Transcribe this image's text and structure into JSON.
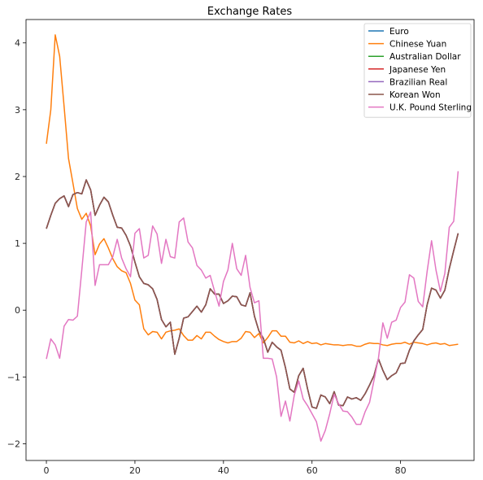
{
  "chart_data": {
    "type": "line",
    "title": "Exchange Rates",
    "xlabel": "",
    "ylabel": "",
    "xlim": [
      -4.6,
      96.6
    ],
    "ylim": [
      -2.25,
      4.35
    ],
    "xticks": [
      0,
      20,
      40,
      60,
      80
    ],
    "yticks": [
      -2,
      -1,
      0,
      1,
      2,
      3,
      4
    ],
    "grid": false,
    "legend_position": "top-right",
    "series": [
      {
        "name": "Euro",
        "color": "#1f77b4",
        "values": [
          1.22,
          1.42,
          1.6,
          1.67,
          1.71,
          1.55,
          1.73,
          1.76,
          1.74,
          1.95,
          1.8,
          1.42,
          1.57,
          1.69,
          1.62,
          1.42,
          1.24,
          1.23,
          1.12,
          0.96,
          0.72,
          0.5,
          0.4,
          0.38,
          0.32,
          0.16,
          -0.14,
          -0.25,
          -0.18,
          -0.66,
          -0.42,
          -0.12,
          -0.1,
          -0.02,
          0.06,
          -0.03,
          0.08,
          0.32,
          0.24,
          0.24,
          0.1,
          0.14,
          0.21,
          0.2,
          0.08,
          0.06,
          0.26,
          -0.09,
          -0.31,
          -0.42,
          -0.63,
          -0.48,
          -0.55,
          -0.6,
          -0.86,
          -1.18,
          -1.23,
          -0.98,
          -0.87,
          -1.18,
          -1.45,
          -1.47,
          -1.27,
          -1.3,
          -1.4,
          -1.22,
          -1.42,
          -1.43,
          -1.3,
          -1.33,
          -1.31,
          -1.35,
          -1.25,
          -1.12,
          -0.98,
          -0.73,
          -0.9,
          -1.04,
          -0.98,
          -0.94,
          -0.8,
          -0.79,
          -0.6,
          -0.46,
          -0.37,
          -0.29,
          0.08,
          0.33,
          0.3,
          0.18,
          0.3,
          0.62,
          0.89,
          1.15
        ]
      },
      {
        "name": "Chinese Yuan",
        "color": "#ff7f0e",
        "values": [
          2.49,
          3.0,
          4.12,
          3.8,
          3.05,
          2.27,
          1.9,
          1.52,
          1.36,
          1.45,
          1.26,
          0.83,
          0.99,
          1.07,
          0.93,
          0.77,
          0.65,
          0.59,
          0.56,
          0.4,
          0.15,
          0.08,
          -0.28,
          -0.37,
          -0.32,
          -0.33,
          -0.43,
          -0.33,
          -0.31,
          -0.3,
          -0.28,
          -0.38,
          -0.45,
          -0.45,
          -0.38,
          -0.43,
          -0.33,
          -0.33,
          -0.39,
          -0.44,
          -0.47,
          -0.49,
          -0.47,
          -0.47,
          -0.42,
          -0.32,
          -0.33,
          -0.41,
          -0.35,
          -0.49,
          -0.41,
          -0.31,
          -0.31,
          -0.39,
          -0.39,
          -0.48,
          -0.49,
          -0.46,
          -0.5,
          -0.47,
          -0.5,
          -0.49,
          -0.52,
          -0.5,
          -0.51,
          -0.52,
          -0.52,
          -0.53,
          -0.52,
          -0.52,
          -0.54,
          -0.54,
          -0.51,
          -0.49,
          -0.5,
          -0.5,
          -0.52,
          -0.53,
          -0.51,
          -0.5,
          -0.5,
          -0.48,
          -0.51,
          -0.48,
          -0.49,
          -0.5,
          -0.52,
          -0.5,
          -0.49,
          -0.51,
          -0.5,
          -0.53,
          -0.52,
          -0.51
        ]
      },
      {
        "name": "Australian Dollar",
        "color": "#2ca02c",
        "values": [
          1.22,
          1.42,
          1.6,
          1.67,
          1.71,
          1.55,
          1.73,
          1.76,
          1.74,
          1.95,
          1.8,
          1.42,
          1.57,
          1.69,
          1.62,
          1.42,
          1.24,
          1.23,
          1.12,
          0.96,
          0.72,
          0.5,
          0.4,
          0.38,
          0.32,
          0.16,
          -0.14,
          -0.25,
          -0.18,
          -0.66,
          -0.42,
          -0.12,
          -0.1,
          -0.02,
          0.06,
          -0.03,
          0.08,
          0.32,
          0.24,
          0.24,
          0.1,
          0.14,
          0.21,
          0.2,
          0.08,
          0.06,
          0.26,
          -0.09,
          -0.31,
          -0.42,
          -0.63,
          -0.48,
          -0.55,
          -0.6,
          -0.86,
          -1.18,
          -1.23,
          -0.98,
          -0.87,
          -1.18,
          -1.45,
          -1.47,
          -1.27,
          -1.3,
          -1.4,
          -1.22,
          -1.42,
          -1.43,
          -1.3,
          -1.33,
          -1.31,
          -1.35,
          -1.25,
          -1.12,
          -0.98,
          -0.73,
          -0.9,
          -1.04,
          -0.98,
          -0.94,
          -0.8,
          -0.79,
          -0.6,
          -0.46,
          -0.37,
          -0.29,
          0.08,
          0.33,
          0.3,
          0.18,
          0.3,
          0.62,
          0.89,
          1.15
        ]
      },
      {
        "name": "Japanese Yen",
        "color": "#d62728",
        "values": [
          1.22,
          1.42,
          1.6,
          1.67,
          1.71,
          1.55,
          1.73,
          1.76,
          1.74,
          1.95,
          1.8,
          1.42,
          1.57,
          1.69,
          1.62,
          1.42,
          1.24,
          1.23,
          1.12,
          0.96,
          0.72,
          0.5,
          0.4,
          0.38,
          0.32,
          0.16,
          -0.14,
          -0.25,
          -0.18,
          -0.66,
          -0.42,
          -0.12,
          -0.1,
          -0.02,
          0.06,
          -0.03,
          0.08,
          0.32,
          0.24,
          0.24,
          0.1,
          0.14,
          0.21,
          0.2,
          0.08,
          0.06,
          0.26,
          -0.09,
          -0.31,
          -0.42,
          -0.63,
          -0.48,
          -0.55,
          -0.6,
          -0.86,
          -1.18,
          -1.23,
          -0.98,
          -0.87,
          -1.18,
          -1.45,
          -1.47,
          -1.27,
          -1.3,
          -1.4,
          -1.22,
          -1.42,
          -1.43,
          -1.3,
          -1.33,
          -1.31,
          -1.35,
          -1.25,
          -1.12,
          -0.98,
          -0.73,
          -0.9,
          -1.04,
          -0.98,
          -0.94,
          -0.8,
          -0.79,
          -0.6,
          -0.46,
          -0.37,
          -0.29,
          0.08,
          0.33,
          0.3,
          0.18,
          0.3,
          0.62,
          0.89,
          1.15
        ]
      },
      {
        "name": "Brazilian Real",
        "color": "#9467bd",
        "values": [
          1.22,
          1.42,
          1.6,
          1.67,
          1.71,
          1.55,
          1.73,
          1.76,
          1.74,
          1.95,
          1.8,
          1.42,
          1.57,
          1.69,
          1.62,
          1.42,
          1.24,
          1.23,
          1.12,
          0.96,
          0.72,
          0.5,
          0.4,
          0.38,
          0.32,
          0.16,
          -0.14,
          -0.25,
          -0.18,
          -0.66,
          -0.42,
          -0.12,
          -0.1,
          -0.02,
          0.06,
          -0.03,
          0.08,
          0.32,
          0.24,
          0.24,
          0.1,
          0.14,
          0.21,
          0.2,
          0.08,
          0.06,
          0.26,
          -0.09,
          -0.31,
          -0.42,
          -0.63,
          -0.48,
          -0.55,
          -0.6,
          -0.86,
          -1.18,
          -1.23,
          -0.98,
          -0.87,
          -1.18,
          -1.45,
          -1.47,
          -1.27,
          -1.3,
          -1.4,
          -1.22,
          -1.42,
          -1.43,
          -1.3,
          -1.33,
          -1.31,
          -1.35,
          -1.25,
          -1.12,
          -0.98,
          -0.73,
          -0.9,
          -1.04,
          -0.98,
          -0.94,
          -0.8,
          -0.79,
          -0.6,
          -0.46,
          -0.37,
          -0.29,
          0.08,
          0.33,
          0.3,
          0.18,
          0.3,
          0.62,
          0.89,
          1.15
        ]
      },
      {
        "name": "Korean Won",
        "color": "#8c564b",
        "values": [
          1.22,
          1.42,
          1.6,
          1.67,
          1.71,
          1.55,
          1.73,
          1.76,
          1.74,
          1.95,
          1.8,
          1.42,
          1.57,
          1.69,
          1.62,
          1.42,
          1.24,
          1.23,
          1.12,
          0.96,
          0.72,
          0.5,
          0.4,
          0.38,
          0.32,
          0.16,
          -0.14,
          -0.25,
          -0.18,
          -0.66,
          -0.42,
          -0.12,
          -0.1,
          -0.02,
          0.06,
          -0.03,
          0.08,
          0.32,
          0.24,
          0.24,
          0.1,
          0.14,
          0.21,
          0.2,
          0.08,
          0.06,
          0.26,
          -0.09,
          -0.31,
          -0.42,
          -0.63,
          -0.48,
          -0.55,
          -0.6,
          -0.86,
          -1.18,
          -1.23,
          -0.98,
          -0.87,
          -1.18,
          -1.45,
          -1.47,
          -1.27,
          -1.3,
          -1.4,
          -1.22,
          -1.42,
          -1.43,
          -1.3,
          -1.33,
          -1.31,
          -1.35,
          -1.25,
          -1.12,
          -0.98,
          -0.73,
          -0.9,
          -1.04,
          -0.98,
          -0.94,
          -0.8,
          -0.79,
          -0.6,
          -0.46,
          -0.37,
          -0.29,
          0.08,
          0.33,
          0.3,
          0.18,
          0.3,
          0.62,
          0.89,
          1.15
        ]
      },
      {
        "name": "U.K. Pound Sterling",
        "color": "#e377c2",
        "values": [
          -0.73,
          -0.43,
          -0.52,
          -0.72,
          -0.24,
          -0.14,
          -0.15,
          -0.09,
          0.6,
          1.32,
          1.47,
          0.37,
          0.68,
          0.68,
          0.68,
          0.8,
          1.06,
          0.78,
          0.62,
          0.5,
          1.15,
          1.22,
          0.78,
          0.82,
          1.26,
          1.14,
          0.7,
          1.06,
          0.8,
          0.78,
          1.32,
          1.38,
          1.02,
          0.93,
          0.67,
          0.6,
          0.48,
          0.52,
          0.28,
          0.06,
          0.43,
          0.6,
          1.0,
          0.62,
          0.52,
          0.82,
          0.34,
          0.11,
          0.14,
          -0.72,
          -0.72,
          -0.73,
          -1.0,
          -1.59,
          -1.36,
          -1.66,
          -1.27,
          -1.06,
          -1.33,
          -1.43,
          -1.55,
          -1.67,
          -1.96,
          -1.8,
          -1.55,
          -1.26,
          -1.4,
          -1.51,
          -1.52,
          -1.6,
          -1.71,
          -1.71,
          -1.52,
          -1.38,
          -1.05,
          -0.72,
          -0.19,
          -0.42,
          -0.18,
          -0.15,
          0.04,
          0.12,
          0.53,
          0.48,
          0.13,
          0.05,
          0.58,
          1.04,
          0.6,
          0.28,
          0.55,
          1.24,
          1.33,
          2.08
        ]
      }
    ]
  }
}
